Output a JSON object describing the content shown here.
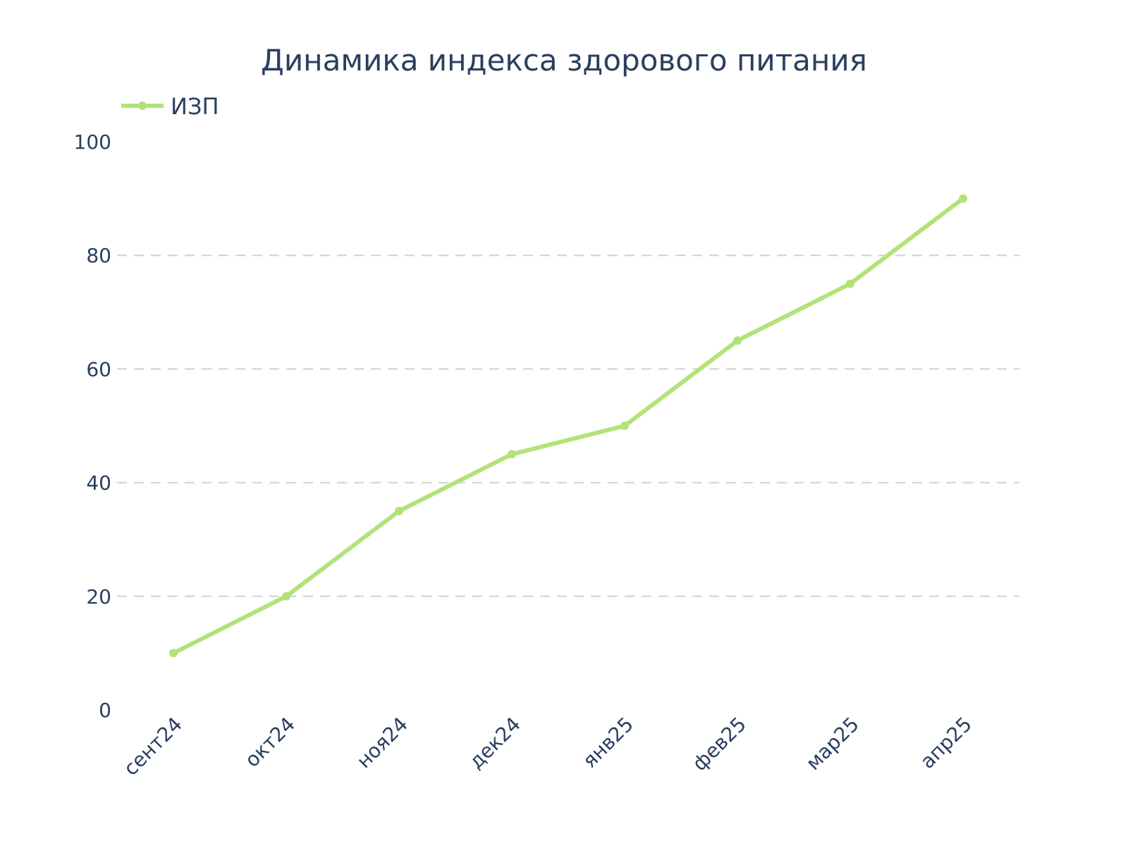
{
  "chart_data": {
    "type": "line",
    "title": "Динамика индекса здорового питания",
    "xlabel": "",
    "ylabel": "",
    "categories": [
      "сент24",
      "окт24",
      "ноя24",
      "дек24",
      "янв25",
      "фев25",
      "мар25",
      "апр25"
    ],
    "series": [
      {
        "name": "ИЗП",
        "values": [
          10,
          20,
          35,
          45,
          50,
          65,
          75,
          90
        ],
        "color": "#b2e279"
      }
    ],
    "ylim": [
      0,
      100
    ],
    "yticks": [
      0,
      20,
      40,
      60,
      80,
      100
    ],
    "grid": "horizontal dashed",
    "legend_position": "top-left",
    "colors": {
      "text": "#2a3f5f",
      "grid": "#d0d0d0",
      "background": "#ffffff"
    }
  }
}
